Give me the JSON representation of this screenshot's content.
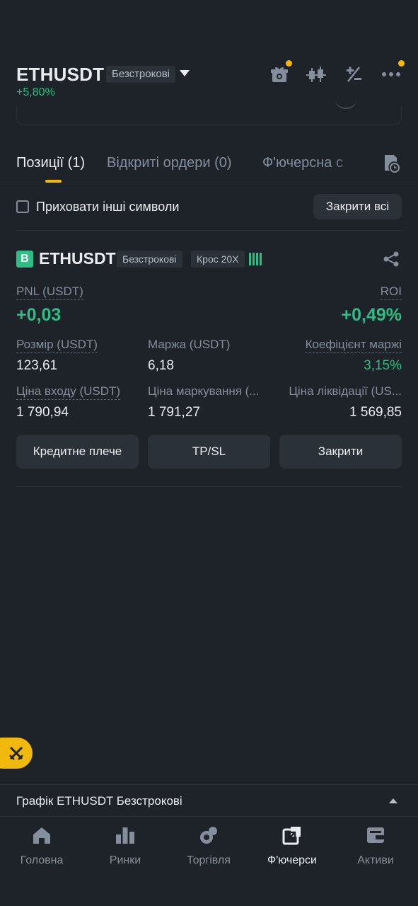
{
  "header": {
    "symbol": "ETHUSDT",
    "contract_type": "Безстрокові",
    "change": "+5,80%",
    "icons": [
      "gift-icon",
      "candlestick-icon",
      "calculator-icon",
      "more-icon"
    ]
  },
  "tabs": [
    {
      "label": "Позиції (1)",
      "active": true
    },
    {
      "label": "Відкриті ордери (0)",
      "active": false
    },
    {
      "label": "Ф'ючерсна с",
      "active": false
    }
  ],
  "filter": {
    "hide_others_label": "Приховати інші символи",
    "close_all_label": "Закрити всі"
  },
  "position": {
    "side": "B",
    "symbol": "ETHUSDT",
    "contract_type": "Безстрокові",
    "margin_mode": "Крос 20X",
    "pnl_label": "PNL (USDT)",
    "pnl_value": "+0,03",
    "roi_label": "ROI",
    "roi_value": "+0,49%",
    "size_label": "Розмір (USDT)",
    "size_value": "123,61",
    "margin_label": "Маржа (USDT)",
    "margin_value": "6,18",
    "margin_ratio_label": "Коефіцієнт маржі",
    "margin_ratio_value": "3,15%",
    "entry_label": "Ціна входу (USDT)",
    "entry_value": "1 790,94",
    "mark_label": "Ціна маркування (...",
    "mark_value": "1 791,27",
    "liq_label": "Ціна ліквідації (US...",
    "liq_value": "1 569,85",
    "buttons": {
      "leverage": "Кредитне плече",
      "tpsl": "TP/SL",
      "close": "Закрити"
    }
  },
  "chart_bar": {
    "label": "Графік ETHUSDT Безстрокові"
  },
  "nav": [
    {
      "label": "Головна",
      "icon": "home-icon",
      "active": false
    },
    {
      "label": "Ринки",
      "icon": "markets-icon",
      "active": false
    },
    {
      "label": "Торгівля",
      "icon": "trade-icon",
      "active": false
    },
    {
      "label": "Ф'ючерси",
      "icon": "futures-icon",
      "active": true
    },
    {
      "label": "Активи",
      "icon": "wallet-icon",
      "active": false
    }
  ],
  "colors": {
    "background": "#1e2329",
    "accent": "#f0b90b",
    "positive": "#2ebd85",
    "muted": "#848e9c"
  }
}
